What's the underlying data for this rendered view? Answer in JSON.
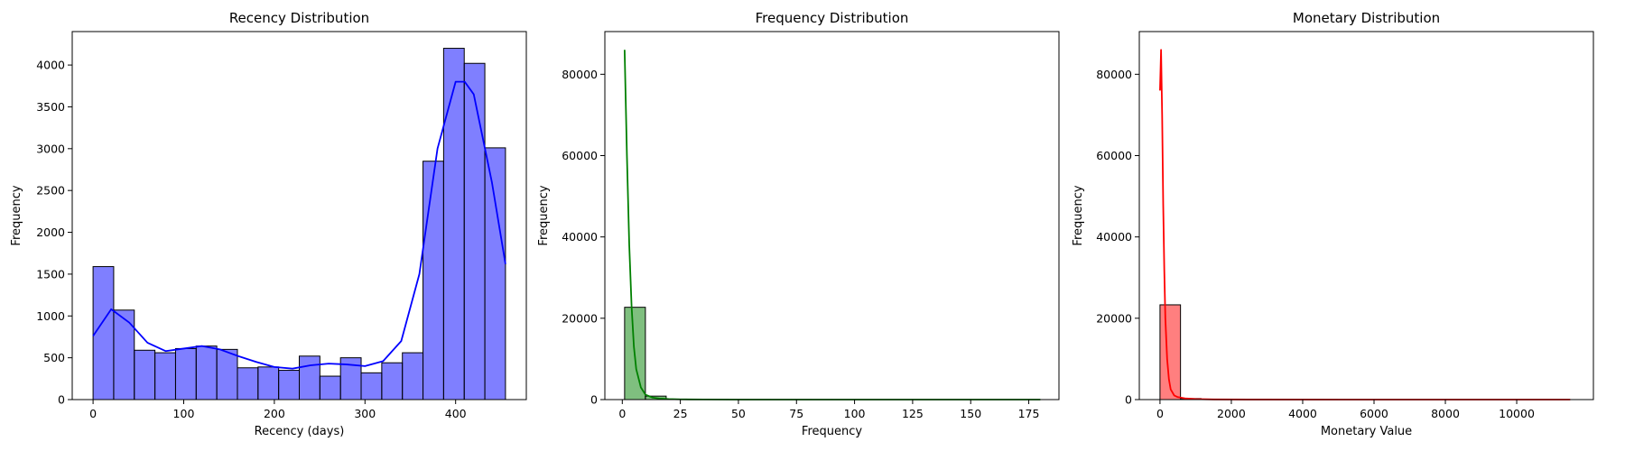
{
  "chart_data": [
    {
      "type": "bar",
      "title": "Recency Distribution",
      "xlabel": "Recency (days)",
      "ylabel": "Frequency",
      "xlim": [
        -23,
        478
      ],
      "ylim": [
        0,
        4400
      ],
      "xticks": [
        0,
        100,
        200,
        300,
        400
      ],
      "yticks": [
        0,
        500,
        1000,
        1500,
        2000,
        2500,
        3000,
        3500,
        4000
      ],
      "color": "#0000ff",
      "bin_edges": [
        0,
        22.75,
        45.5,
        68.25,
        91,
        113.75,
        136.5,
        159.25,
        182,
        204.75,
        227.5,
        250.25,
        273,
        295.75,
        318.5,
        341.25,
        364,
        386.75,
        409.5,
        432.25,
        455
      ],
      "values": [
        1590,
        1070,
        590,
        560,
        610,
        640,
        600,
        380,
        390,
        350,
        520,
        280,
        500,
        320,
        440,
        560,
        2850,
        4200,
        4020,
        3010
      ],
      "kde": {
        "x": [
          0,
          20,
          40,
          60,
          80,
          100,
          120,
          140,
          160,
          180,
          200,
          220,
          240,
          260,
          280,
          300,
          320,
          340,
          360,
          380,
          400,
          410,
          420,
          440,
          455
        ],
        "y": [
          760,
          1080,
          920,
          680,
          580,
          610,
          640,
          600,
          520,
          450,
          390,
          370,
          410,
          430,
          420,
          400,
          460,
          700,
          1500,
          3000,
          3800,
          3800,
          3650,
          2600,
          1620
        ]
      },
      "grid": false,
      "legend": "none"
    },
    {
      "type": "bar",
      "title": "Frequency Distribution",
      "xlabel": "Frequency",
      "ylabel": "Frequency",
      "xlim": [
        -7.5,
        188
      ],
      "ylim": [
        0,
        90500
      ],
      "xticks": [
        0,
        25,
        50,
        75,
        100,
        125,
        150,
        175
      ],
      "yticks": [
        0,
        20000,
        40000,
        60000,
        80000
      ],
      "color": "#008000",
      "bin_edges": [
        1,
        9.95,
        18.9,
        27.85,
        36.8,
        45.75,
        54.7,
        63.65,
        72.6,
        81.55,
        90.5,
        99.45,
        108.4,
        117.35,
        126.3,
        135.25,
        144.2,
        153.15,
        162.1,
        171.05,
        180
      ],
      "values": [
        22700,
        850,
        120,
        40,
        20,
        10,
        5,
        3,
        2,
        1,
        1,
        0,
        0,
        0,
        0,
        0,
        0,
        0,
        0,
        1
      ],
      "kde": {
        "x": [
          1,
          2,
          3,
          4,
          5,
          6,
          8,
          10,
          13,
          16,
          20,
          25,
          35,
          50,
          80,
          120,
          180
        ],
        "y": [
          86000,
          60000,
          38000,
          23000,
          13000,
          7500,
          3000,
          1200,
          500,
          250,
          120,
          60,
          20,
          5,
          0,
          0,
          0
        ]
      },
      "grid": false,
      "legend": "none"
    },
    {
      "type": "bar",
      "title": "Monetary Distribution",
      "xlabel": "Monetary Value",
      "ylabel": "Frequency",
      "xlim": [
        -580,
        12150
      ],
      "ylim": [
        0,
        90500
      ],
      "xticks": [
        0,
        2000,
        4000,
        6000,
        8000,
        10000
      ],
      "yticks": [
        0,
        20000,
        40000,
        60000,
        80000
      ],
      "color": "#ff0000",
      "bin_edges": [
        0,
        575,
        1150,
        1725,
        2300,
        2875,
        3450,
        4025,
        4600,
        5175,
        5750,
        6325,
        6900,
        7475,
        8050,
        8625,
        9200,
        9775,
        10350,
        10925,
        11500
      ],
      "values": [
        23300,
        250,
        60,
        20,
        10,
        5,
        3,
        2,
        1,
        1,
        0,
        0,
        0,
        0,
        0,
        0,
        0,
        0,
        0,
        1
      ],
      "kde": {
        "x": [
          0,
          30,
          60,
          90,
          120,
          150,
          200,
          250,
          300,
          400,
          500,
          700,
          1000,
          1500,
          2500,
          5000,
          11500
        ],
        "y": [
          76000,
          86000,
          70000,
          48000,
          32000,
          20000,
          10000,
          5000,
          2500,
          1000,
          600,
          300,
          120,
          40,
          10,
          0,
          0
        ]
      },
      "grid": false,
      "legend": "none"
    }
  ]
}
